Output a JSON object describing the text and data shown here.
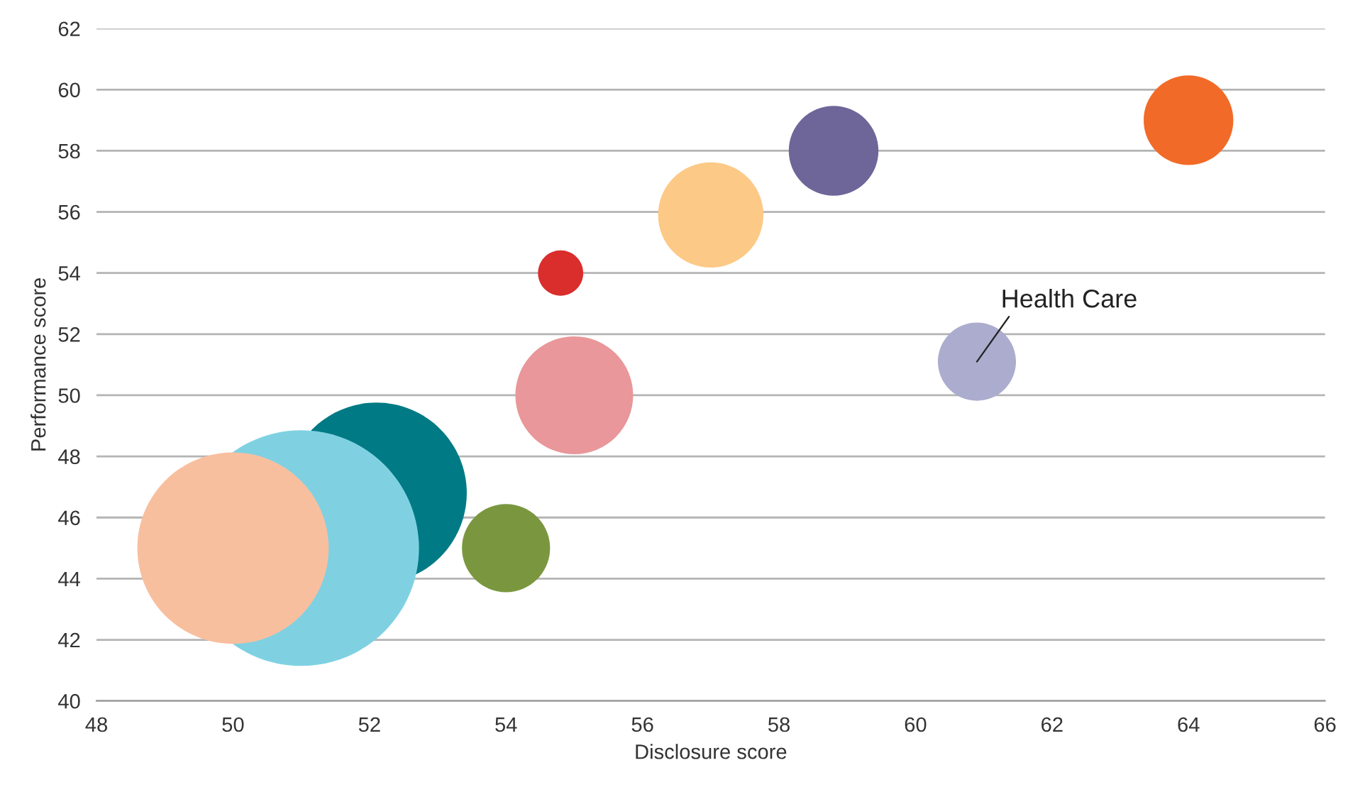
{
  "chart_data": {
    "type": "bubble",
    "xlabel": "Disclosure score",
    "ylabel": "Performance score",
    "x": [
      52.1,
      51.0,
      50.0,
      54.0,
      55.0,
      54.8,
      57.0,
      58.8,
      60.9,
      64.0
    ],
    "values": [
      46.8,
      45.0,
      45.0,
      45.0,
      50.0,
      54.0,
      55.9,
      58.0,
      51.1,
      59.0
    ],
    "sizes": [
      0.59,
      1,
      0.66,
      0.14,
      0.25,
      0.037,
      0.2,
      0.145,
      0.11,
      0.145
    ],
    "colors": [
      "#007a84",
      "#7fd1e2",
      "#f8bf9f",
      "#7a973f",
      "#e9979a",
      "#d92e2c",
      "#fdc986",
      "#6e6699",
      "#abacce",
      "#f26a27"
    ],
    "xlim": [
      48,
      66
    ],
    "xticks": [
      48,
      50,
      52,
      54,
      56,
      58,
      60,
      62,
      64,
      66
    ],
    "ylim": [
      40,
      62
    ],
    "yticks": [
      40,
      42,
      44,
      46,
      48,
      50,
      52,
      54,
      56,
      58,
      60,
      62
    ],
    "grid": "y",
    "annotations": [
      {
        "text": "Health Care",
        "x": 60.9,
        "y": 51.1
      }
    ]
  }
}
